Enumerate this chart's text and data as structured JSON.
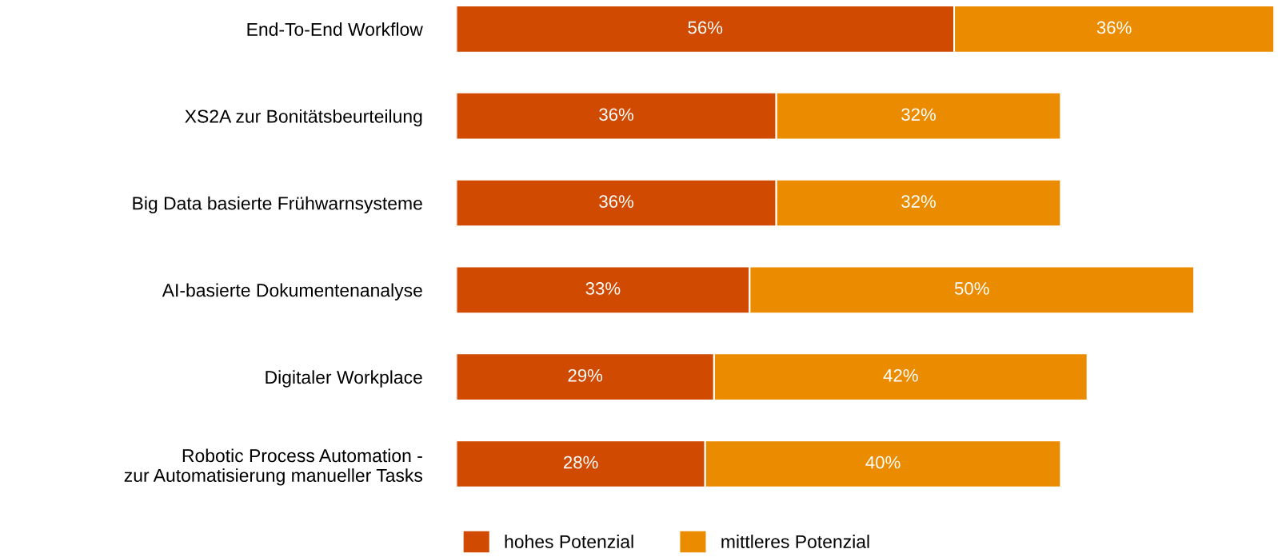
{
  "chart_data": {
    "type": "bar",
    "orientation": "horizontal",
    "stacked": true,
    "legend": "bottom",
    "grid": false,
    "categories": [
      "End-To-End Workflow",
      "XS2A zur Bonitätsbeurteilung",
      "Big Data basierte Frühwarnsysteme",
      "AI-basierte Dokumentenanalyse",
      "Digitaler Workplace",
      "Robotic Process Automation -\nzur Automatisierung manueller Tasks"
    ],
    "series": [
      {
        "name": "hohes Potenzial",
        "color": "#d04a02",
        "values": [
          56,
          36,
          36,
          33,
          29,
          28
        ],
        "value_labels": [
          "56%",
          "36%",
          "36%",
          "33%",
          "29%",
          "28%"
        ]
      },
      {
        "name": "mittleres Potenzial",
        "color": "#eb8c00",
        "values": [
          36,
          32,
          32,
          50,
          42,
          40
        ],
        "value_labels": [
          "36%",
          "32%",
          "32%",
          "50%",
          "42%",
          "40%"
        ]
      }
    ]
  }
}
